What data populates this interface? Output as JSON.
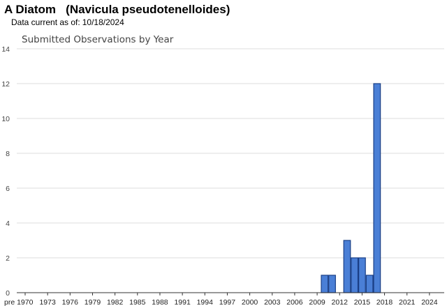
{
  "header": {
    "title": "A Diatom   (Navicula pseudotenelloides)",
    "data_current_label": "Data current as of:",
    "data_current_date": "10/18/2024"
  },
  "colors": {
    "bar_fill": "#4a7fd6",
    "bar_edge": "#1a3f86",
    "grid": "#dcdcdc"
  },
  "chart_data": {
    "type": "bar",
    "title": "Submitted Observations by Year",
    "xlabel": "",
    "ylabel": "",
    "ylim": [
      0,
      14
    ],
    "yticks": [
      0,
      2,
      4,
      6,
      8,
      10,
      12,
      14
    ],
    "grid": true,
    "categories": [
      "pre 1970",
      "1971",
      "1972",
      "1973",
      "1974",
      "1975",
      "1976",
      "1977",
      "1978",
      "1979",
      "1980",
      "1981",
      "1982",
      "1983",
      "1984",
      "1985",
      "1986",
      "1987",
      "1988",
      "1989",
      "1990",
      "1991",
      "1992",
      "1993",
      "1994",
      "1995",
      "1996",
      "1997",
      "1998",
      "1999",
      "2000",
      "2001",
      "2002",
      "2003",
      "2004",
      "2005",
      "2006",
      "2007",
      "2008",
      "2009",
      "2010",
      "2011",
      "2012",
      "2013",
      "2014",
      "2015",
      "2016",
      "2017",
      "2018",
      "2019",
      "2020",
      "2021",
      "2022",
      "2023",
      "2024"
    ],
    "x_tick_labels": [
      "pre 1970",
      "1973",
      "1976",
      "1979",
      "1982",
      "1985",
      "1988",
      "1991",
      "1994",
      "1997",
      "2000",
      "2003",
      "2006",
      "2009",
      "2012",
      "2015",
      "2018",
      "2021",
      "2024"
    ],
    "values": [
      0,
      0,
      0,
      0,
      0,
      0,
      0,
      0,
      0,
      0,
      0,
      0,
      0,
      0,
      0,
      0,
      0,
      0,
      0,
      0,
      0,
      0,
      0,
      0,
      0,
      0,
      0,
      0,
      0,
      0,
      0,
      0,
      0,
      0,
      0,
      0,
      0,
      0,
      0,
      0,
      1,
      1,
      0,
      3,
      2,
      2,
      1,
      12,
      0,
      0,
      0,
      0,
      0,
      0,
      0
    ]
  }
}
